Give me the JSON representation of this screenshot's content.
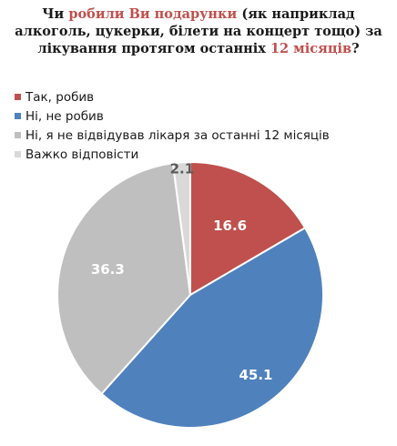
{
  "title": {
    "parts": [
      {
        "text": "Чи ",
        "highlight": false
      },
      {
        "text": "робили Ви подарунки",
        "highlight": true
      },
      {
        "text": " (як наприклад алкоголь, цукерки, білети на концерт тощо) за лікування протягом останніх ",
        "highlight": false
      },
      {
        "text": "12 місяців",
        "highlight": true
      },
      {
        "text": "?",
        "highlight": false
      }
    ],
    "highlight_color": "#c0504d"
  },
  "chart_data": {
    "type": "pie",
    "title": "Чи робили Ви подарунки (як наприклад алкоголь, цукерки, білети на концерт тощо) за лікування протягом останніх 12 місяців?",
    "legend_position": "top-left",
    "slices": [
      {
        "label": "Так, робив",
        "value": 16.6,
        "value_label": "16.6",
        "color": "#c0504d",
        "label_color": "#ffffff"
      },
      {
        "label": "Ні, не робив",
        "value": 45.1,
        "value_label": "45.1",
        "color": "#4f81bd",
        "label_color": "#ffffff"
      },
      {
        "label": "Ні, я не відвідував лікаря за останні 12 місяців",
        "value": 36.3,
        "value_label": "36.3",
        "color": "#bfbfbf",
        "label_color": "#ffffff"
      },
      {
        "label": "Важко відповісти",
        "value": 2.1,
        "value_label": "2.1",
        "color": "#d9d9d9",
        "label_color": "#595959"
      }
    ]
  }
}
